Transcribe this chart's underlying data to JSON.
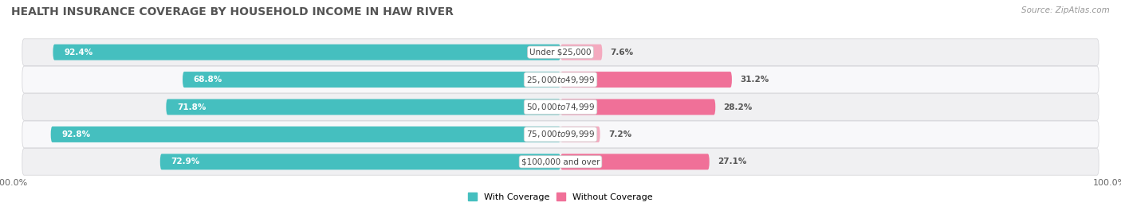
{
  "title": "HEALTH INSURANCE COVERAGE BY HOUSEHOLD INCOME IN HAW RIVER",
  "source": "Source: ZipAtlas.com",
  "categories": [
    "Under $25,000",
    "$25,000 to $49,999",
    "$50,000 to $74,999",
    "$75,000 to $99,999",
    "$100,000 and over"
  ],
  "with_coverage": [
    92.4,
    68.8,
    71.8,
    92.8,
    72.9
  ],
  "without_coverage": [
    7.6,
    31.2,
    28.2,
    7.2,
    27.1
  ],
  "coverage_color": "#45BFBF",
  "no_coverage_color_light": "#F4AABF",
  "no_coverage_color_dark": "#F07098",
  "no_coverage_colors": [
    "#F4AABF",
    "#F07098",
    "#F07098",
    "#F4AABF",
    "#F07098"
  ],
  "row_colors": [
    "#F0F0F2",
    "#F8F8FA"
  ],
  "title_fontsize": 10,
  "source_fontsize": 7.5,
  "bar_label_fontsize": 7.5,
  "category_fontsize": 7.5,
  "legend_fontsize": 8,
  "axis_label_fontsize": 8
}
